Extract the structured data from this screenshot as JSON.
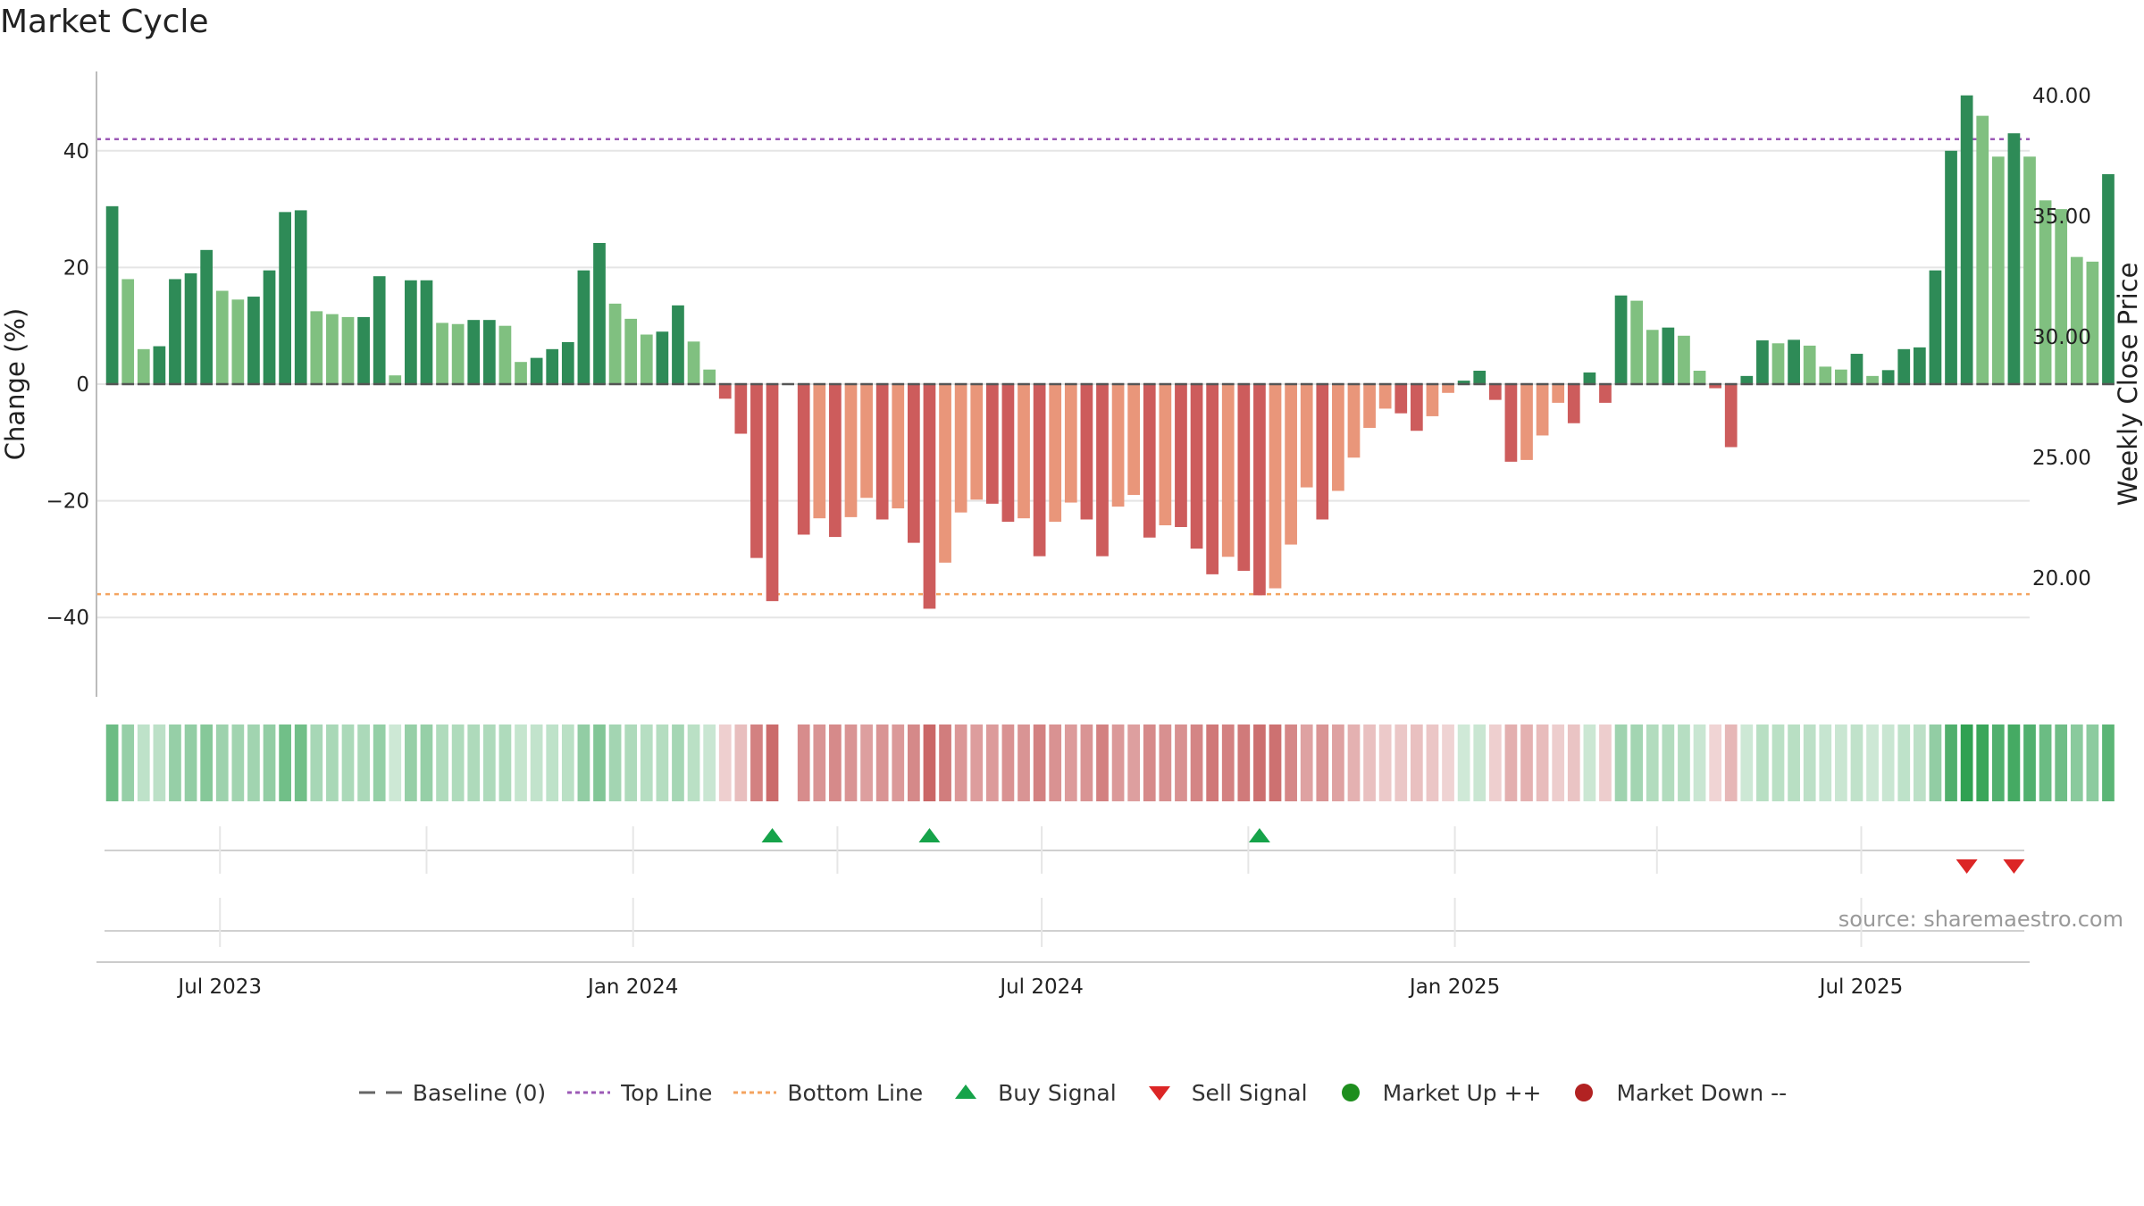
{
  "title": "Market Cycle",
  "source": "source: sharemaestro.com",
  "chart_data": {
    "type": "bar",
    "xlabel": "",
    "ylabel": "Change (%)",
    "y2label": "Weekly Close Price",
    "ylim": [
      -54,
      54
    ],
    "yticks": [
      -40,
      -20,
      0,
      20,
      40
    ],
    "y2ticks": [
      "20.00",
      "25.00",
      "30.00",
      "35.00",
      "40.00"
    ],
    "top_line": 42,
    "bottom_line": -36,
    "x_range": [
      "2023-05-07",
      "2025-09-14"
    ],
    "x_ticks": [
      {
        "label": "Jul 2023",
        "date": "2023-07-01"
      },
      {
        "label": "Jan 2024",
        "date": "2024-01-01"
      },
      {
        "label": "Jul 2024",
        "date": "2024-07-01"
      },
      {
        "label": "Jan 2025",
        "date": "2025-01-01"
      },
      {
        "label": "Jul 2025",
        "date": "2025-07-01"
      }
    ],
    "start_week": "2023-05-14",
    "values": [
      30.5,
      18,
      6,
      6.5,
      18,
      19,
      23,
      16,
      14.5,
      15,
      19.5,
      29.5,
      29.8,
      12.5,
      12,
      11.5,
      11.5,
      18.5,
      1.5,
      17.8,
      17.8,
      10.5,
      10.3,
      11,
      11,
      10,
      3.8,
      4.5,
      6,
      7.2,
      19.5,
      24.2,
      13.8,
      11.2,
      8.5,
      9,
      13.5,
      7.3,
      2.5,
      -2.5,
      -8.5,
      -29.8,
      -37.2,
      0,
      -25.8,
      -23,
      -26.2,
      -22.8,
      -19.5,
      -23.2,
      -21.3,
      -27.2,
      -38.5,
      -30.6,
      -22,
      -19.8,
      -20.5,
      -23.6,
      -23,
      -29.5,
      -23.6,
      -20.3,
      -23.2,
      -29.5,
      -21,
      -19,
      -26.3,
      -24.2,
      -24.5,
      -28.2,
      -32.6,
      -29.6,
      -32,
      -36.2,
      -35,
      -27.5,
      -17.7,
      -23.2,
      -18.3,
      -12.6,
      -7.5,
      -4.2,
      -5,
      -8,
      -5.5,
      -1.5,
      0.6,
      2.3,
      -2.7,
      -13.3,
      -13,
      -8.8,
      -3.2,
      -6.7,
      2,
      -3.2,
      15.2,
      14.3,
      9.3,
      9.7,
      8.3,
      2.3,
      -0.7,
      -10.8,
      1.4,
      7.5,
      7,
      7.6,
      6.6,
      3,
      2.5,
      5.2,
      1.4,
      2.4,
      6,
      6.3,
      19.5,
      40,
      49.5,
      46,
      39,
      43,
      39,
      31.5,
      30,
      21.8,
      21,
      36
    ],
    "buy_signals": [
      42,
      52,
      73
    ],
    "sell_signals": [
      118,
      121
    ],
    "series_names": [
      "Baseline (0)",
      "Top Line",
      "Bottom Line",
      "Buy Signal",
      "Sell Signal",
      "Market Up ++",
      "Market Down --"
    ]
  },
  "colors": {
    "up_strong": "#2e8b57",
    "up_weak": "#80c080",
    "down_strong": "#cd5c5c",
    "down_weak": "#e9967a",
    "top_line": "#9b59b6",
    "bottom_line": "#f4a460",
    "buy": "#16a34a",
    "sell": "#dc2626",
    "market_up": "#1e8e1e",
    "market_down": "#b22222",
    "baseline": "#555555",
    "grid": "#e5e5e5"
  },
  "legend": [
    {
      "label": "Baseline (0)",
      "symbol": "dash-line"
    },
    {
      "label": "Top Line",
      "symbol": "dotted-purple"
    },
    {
      "label": "Bottom Line",
      "symbol": "dotted-orange"
    },
    {
      "label": "Buy Signal",
      "symbol": "triangle-up"
    },
    {
      "label": "Sell Signal",
      "symbol": "triangle-down"
    },
    {
      "label": "Market Up ++",
      "symbol": "dot-green"
    },
    {
      "label": "Market Down --",
      "symbol": "dot-red"
    }
  ]
}
